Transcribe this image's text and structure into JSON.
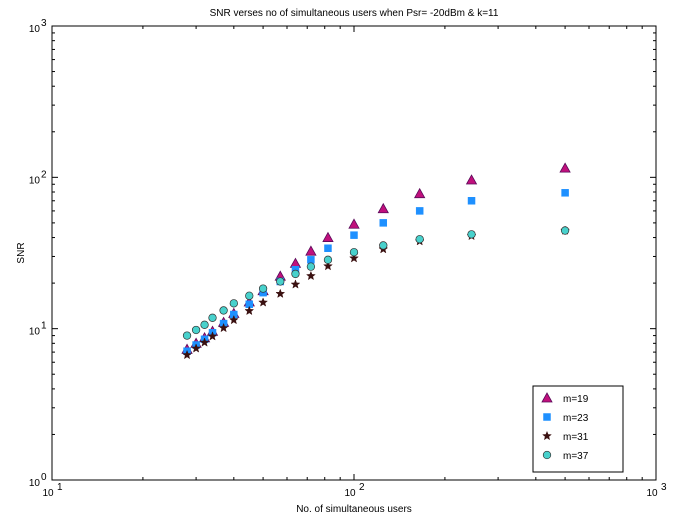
{
  "chart_data": {
    "type": "scatter",
    "title": "SNR verses no of simultaneous users when Psr= -20dBm & k=11",
    "xlabel": "No. of simultaneous users",
    "ylabel": "SNR",
    "xscale": "log",
    "yscale": "log",
    "xlim": [
      10,
      1000
    ],
    "ylim": [
      1,
      1000
    ],
    "xticks": [
      {
        "value": 10,
        "base": "10",
        "exp": "1"
      },
      {
        "value": 100,
        "base": "10",
        "exp": "2"
      },
      {
        "value": 1000,
        "base": "10",
        "exp": "3"
      }
    ],
    "yticks": [
      {
        "value": 1,
        "base": "10",
        "exp": "0"
      },
      {
        "value": 10,
        "base": "10",
        "exp": "1"
      },
      {
        "value": 100,
        "base": "10",
        "exp": "2"
      },
      {
        "value": 1000,
        "base": "10",
        "exp": "3"
      }
    ],
    "grid": false,
    "legend_position": "bottom-right",
    "x": [
      28,
      30,
      32,
      34,
      37,
      40,
      45,
      50,
      57,
      64,
      72,
      82,
      100,
      125,
      165,
      245,
      500
    ],
    "series": [
      {
        "name": "m=19",
        "marker": "triangle",
        "color": "#c0107c",
        "edge": "#5a0a5a",
        "values": [
          7.3,
          8.0,
          8.7,
          9.6,
          11.0,
          12.6,
          15.0,
          17.8,
          22.2,
          27.0,
          32.5,
          40.0,
          49.0,
          62.0,
          78.0,
          96.0,
          115.0
        ]
      },
      {
        "name": "m=23",
        "marker": "square",
        "color": "#1e90ff",
        "edge": "#1e90ff",
        "values": [
          7.1,
          7.8,
          8.5,
          9.4,
          10.8,
          12.4,
          14.5,
          17.3,
          20.5,
          24.5,
          28.5,
          34.0,
          41.5,
          50.0,
          60.0,
          70.0,
          79.0
        ]
      },
      {
        "name": "m=31",
        "marker": "star",
        "color": "#3a1010",
        "edge": "#3a1010",
        "values": [
          6.7,
          7.4,
          8.1,
          8.9,
          10.1,
          11.4,
          13.1,
          14.9,
          17.0,
          19.6,
          22.3,
          25.9,
          29.2,
          33.5,
          37.8,
          41.0,
          44.5
        ]
      },
      {
        "name": "m=37",
        "marker": "circle",
        "color": "#48d1cc",
        "edge": "#333333",
        "values": [
          9.0,
          9.8,
          10.6,
          11.8,
          13.2,
          14.7,
          16.5,
          18.4,
          20.5,
          23.0,
          25.7,
          28.5,
          32.0,
          35.5,
          39.0,
          42.0,
          44.5
        ]
      }
    ]
  }
}
